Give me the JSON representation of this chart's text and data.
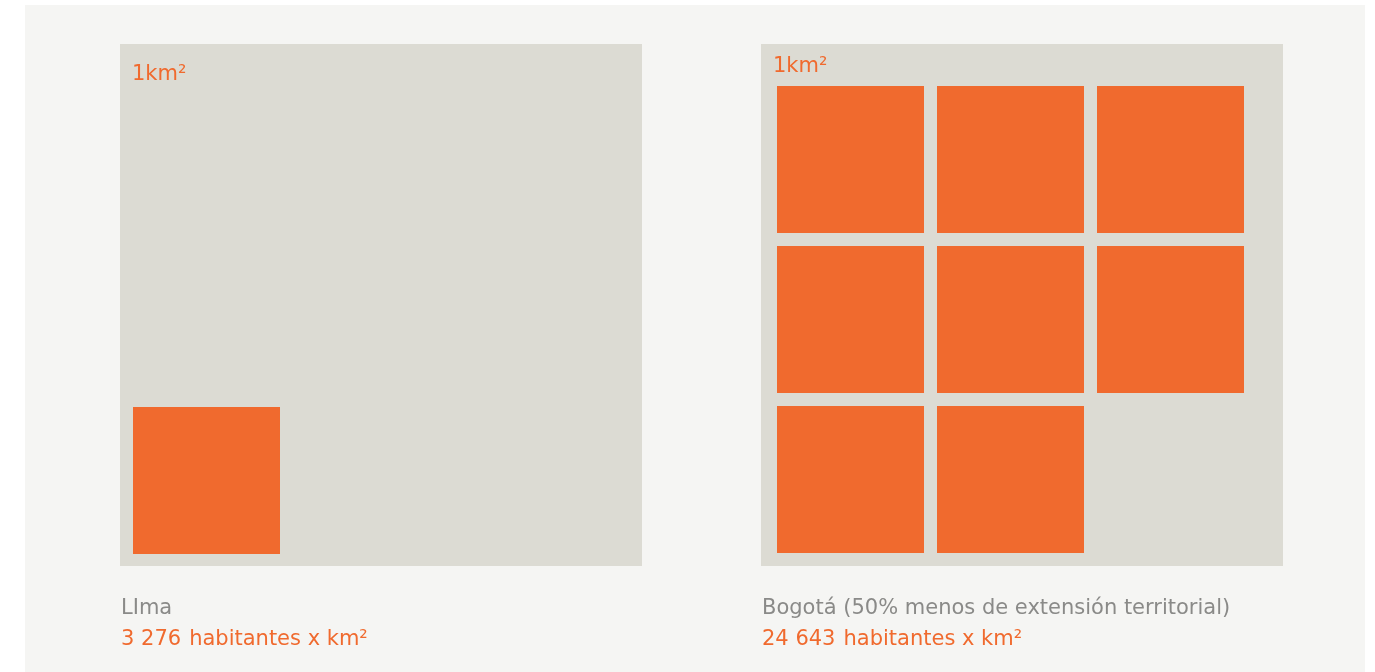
{
  "chart_data": {
    "type": "other",
    "categories": [
      "LIma",
      "Bogotá (50% menos de extensión territorial)"
    ],
    "values": [
      3276,
      24643
    ],
    "value_labels": [
      "3 276",
      "24 643"
    ],
    "colors": [
      "#f06a2e",
      "#f06a2e"
    ],
    "annotations": [
      "1km²",
      "1km²",
      "habitantes x km²",
      "habitantes x km²"
    ]
  }
}
